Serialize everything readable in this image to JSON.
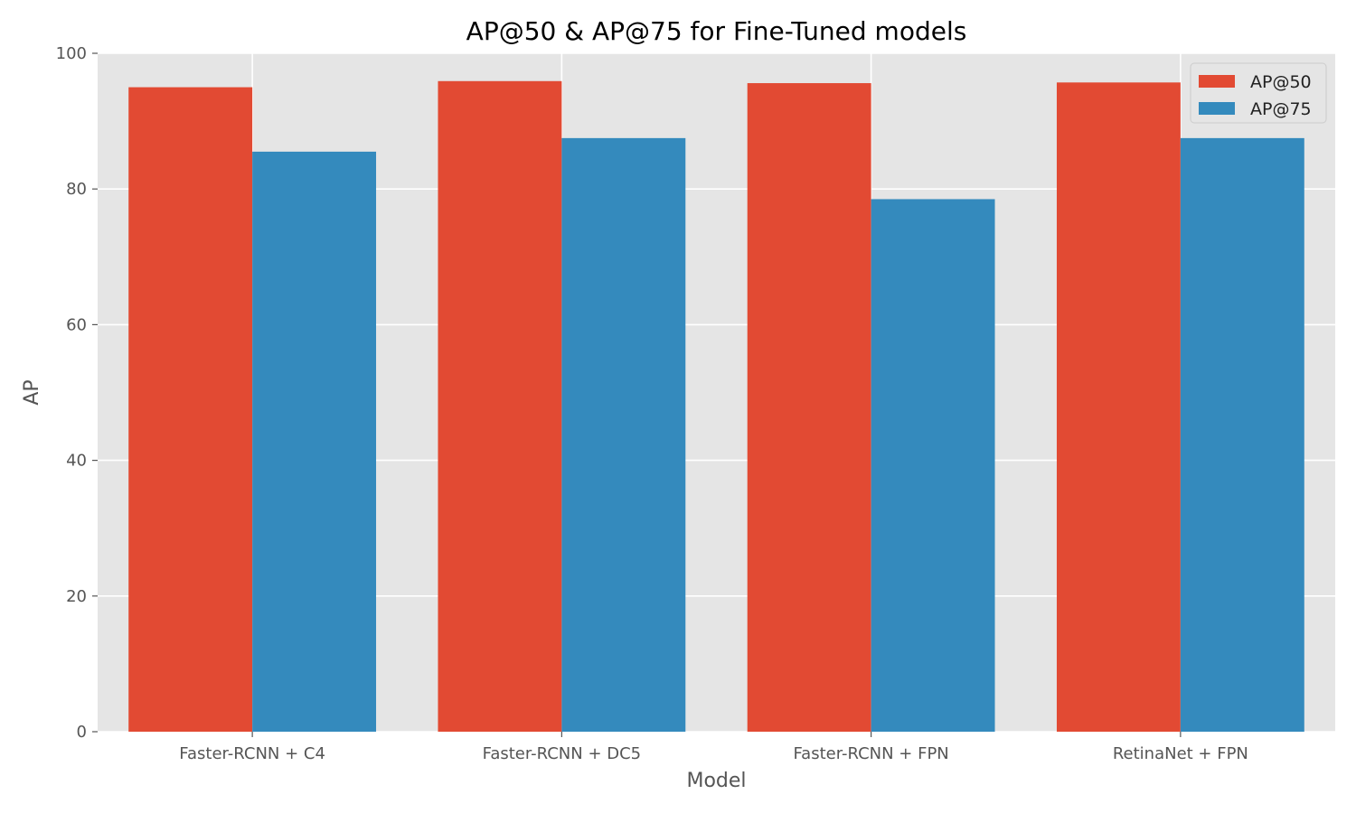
{
  "chart_data": {
    "type": "bar",
    "title": "AP@50 & AP@75 for Fine-Tuned models",
    "xlabel": "Model",
    "ylabel": "AP",
    "categories": [
      "Faster-RCNN + C4",
      "Faster-RCNN + DC5",
      "Faster-RCNN + FPN",
      "RetinaNet + FPN"
    ],
    "series": [
      {
        "name": "AP@50",
        "color": "#E24A33",
        "values": [
          95.0,
          95.9,
          95.6,
          95.7
        ]
      },
      {
        "name": "AP@75",
        "color": "#348ABD",
        "values": [
          85.5,
          87.5,
          78.5,
          87.5
        ]
      }
    ],
    "ylim": [
      0,
      100
    ],
    "yticks": [
      0,
      20,
      40,
      60,
      80,
      100
    ],
    "grid": true,
    "legend_position": "top-right",
    "plot_background": "#E5E5E5"
  }
}
